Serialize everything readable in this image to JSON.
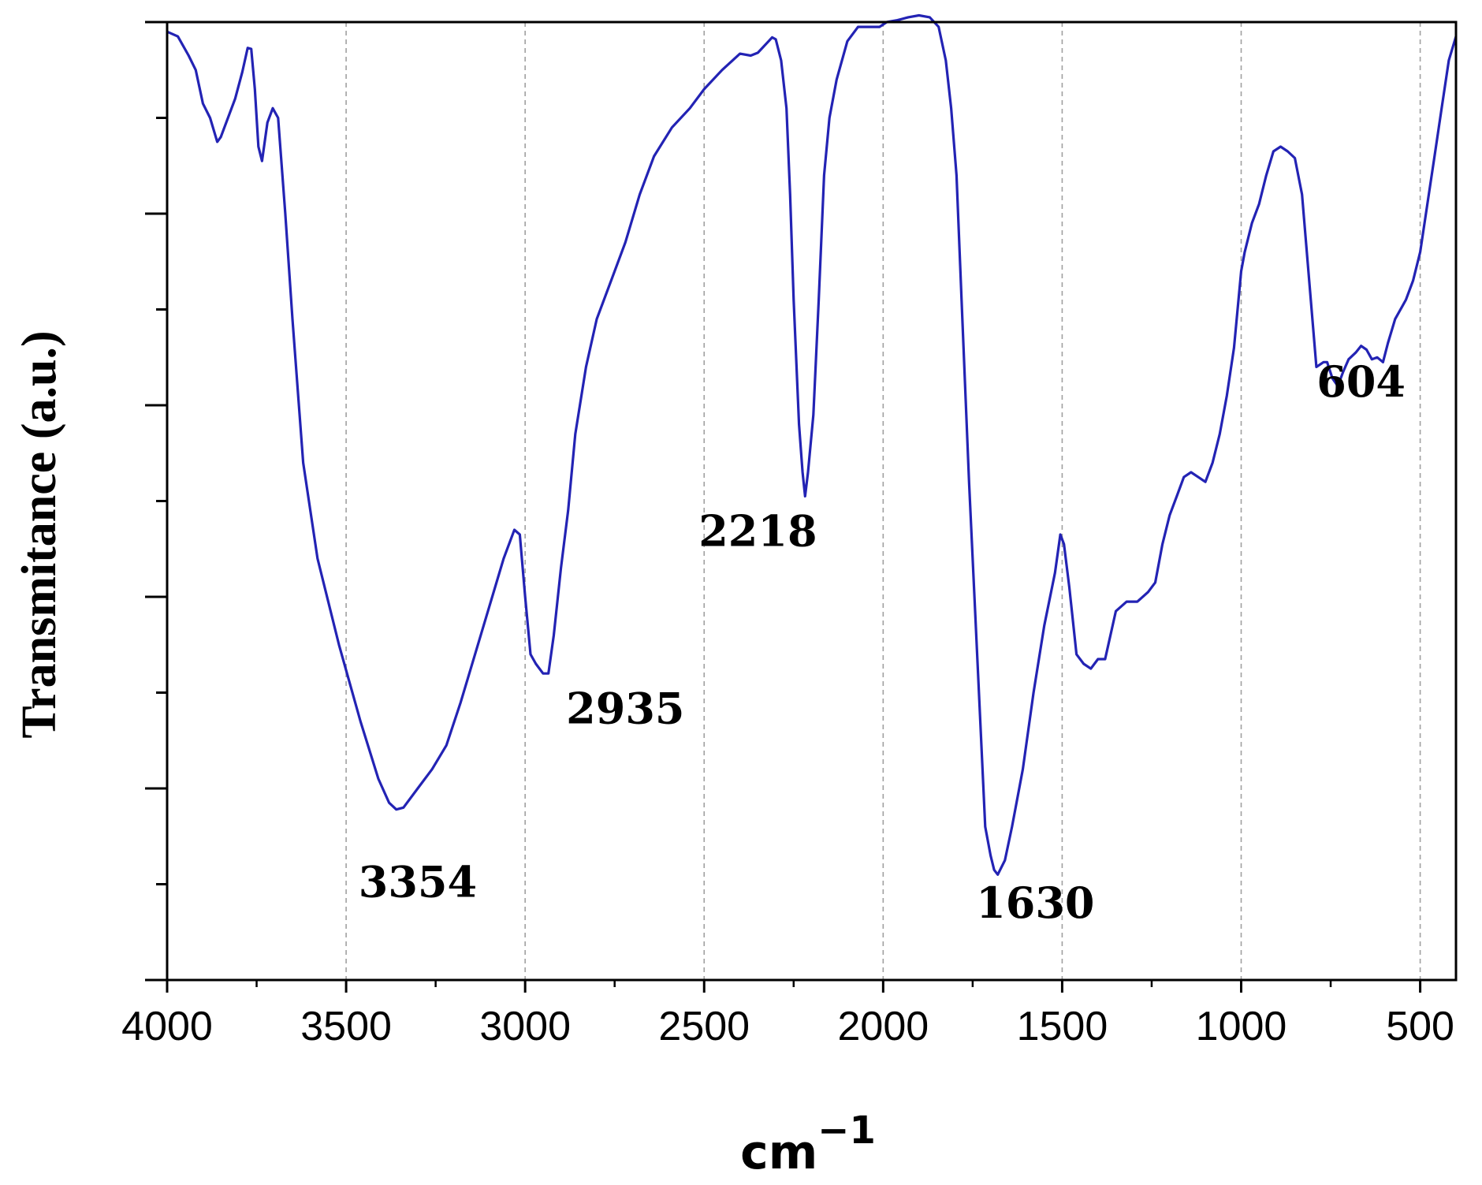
{
  "chart_data": {
    "type": "line",
    "title": "",
    "xlabel": "cm",
    "xlabel_superscript": "−1",
    "ylabel": "Transmitance (a.u.)",
    "xlim": [
      4000,
      400
    ],
    "x_reversed": true,
    "ylim": [
      0,
      1
    ],
    "y_tick_labels_shown": false,
    "y_tick_count": 11,
    "x_ticks": [
      4000,
      3500,
      3000,
      2500,
      2000,
      1500,
      1000,
      500
    ],
    "x_tick_labels": [
      "4000",
      "3500",
      "3000",
      "2500",
      "2000",
      "1500",
      "1000",
      "500"
    ],
    "x_minor_ticks": [
      3750,
      3250,
      2750,
      2250,
      1750,
      1250,
      750
    ],
    "grid": "vertical dashed at major x ticks",
    "legend": "none",
    "series": [
      {
        "color": "#2323b4",
        "points": [
          [
            4000,
            0.99
          ],
          [
            3970,
            0.985
          ],
          [
            3940,
            0.965
          ],
          [
            3920,
            0.95
          ],
          [
            3900,
            0.915
          ],
          [
            3880,
            0.9
          ],
          [
            3860,
            0.875
          ],
          [
            3850,
            0.88
          ],
          [
            3810,
            0.92
          ],
          [
            3790,
            0.948
          ],
          [
            3775,
            0.973
          ],
          [
            3765,
            0.972
          ],
          [
            3755,
            0.93
          ],
          [
            3745,
            0.87
          ],
          [
            3735,
            0.855
          ],
          [
            3720,
            0.895
          ],
          [
            3705,
            0.91
          ],
          [
            3690,
            0.9
          ],
          [
            3670,
            0.8
          ],
          [
            3650,
            0.69
          ],
          [
            3620,
            0.54
          ],
          [
            3580,
            0.44
          ],
          [
            3520,
            0.35
          ],
          [
            3460,
            0.27
          ],
          [
            3410,
            0.21
          ],
          [
            3380,
            0.185
          ],
          [
            3360,
            0.178
          ],
          [
            3340,
            0.18
          ],
          [
            3300,
            0.2
          ],
          [
            3260,
            0.22
          ],
          [
            3220,
            0.245
          ],
          [
            3180,
            0.29
          ],
          [
            3140,
            0.34
          ],
          [
            3100,
            0.39
          ],
          [
            3060,
            0.44
          ],
          [
            3030,
            0.47
          ],
          [
            3015,
            0.465
          ],
          [
            3000,
            0.4
          ],
          [
            2985,
            0.34
          ],
          [
            2970,
            0.33
          ],
          [
            2950,
            0.32
          ],
          [
            2935,
            0.32
          ],
          [
            2920,
            0.36
          ],
          [
            2900,
            0.43
          ],
          [
            2880,
            0.49
          ],
          [
            2860,
            0.57
          ],
          [
            2830,
            0.64
          ],
          [
            2800,
            0.69
          ],
          [
            2760,
            0.73
          ],
          [
            2720,
            0.77
          ],
          [
            2680,
            0.82
          ],
          [
            2640,
            0.86
          ],
          [
            2590,
            0.89
          ],
          [
            2540,
            0.91
          ],
          [
            2500,
            0.93
          ],
          [
            2450,
            0.95
          ],
          [
            2400,
            0.967
          ],
          [
            2370,
            0.965
          ],
          [
            2350,
            0.968
          ],
          [
            2320,
            0.98
          ],
          [
            2310,
            0.984
          ],
          [
            2300,
            0.982
          ],
          [
            2285,
            0.96
          ],
          [
            2270,
            0.91
          ],
          [
            2260,
            0.82
          ],
          [
            2250,
            0.71
          ],
          [
            2235,
            0.58
          ],
          [
            2225,
            0.53
          ],
          [
            2218,
            0.505
          ],
          [
            2210,
            0.53
          ],
          [
            2195,
            0.59
          ],
          [
            2180,
            0.71
          ],
          [
            2165,
            0.84
          ],
          [
            2150,
            0.9
          ],
          [
            2130,
            0.94
          ],
          [
            2100,
            0.98
          ],
          [
            2070,
            0.995
          ],
          [
            2040,
            0.995
          ],
          [
            2010,
            0.995
          ],
          [
            1990,
            1.0
          ],
          [
            1960,
            1.002
          ],
          [
            1930,
            1.005
          ],
          [
            1900,
            1.007
          ],
          [
            1870,
            1.005
          ],
          [
            1845,
            0.995
          ],
          [
            1825,
            0.96
          ],
          [
            1810,
            0.91
          ],
          [
            1795,
            0.84
          ],
          [
            1780,
            0.7
          ],
          [
            1760,
            0.52
          ],
          [
            1735,
            0.32
          ],
          [
            1715,
            0.16
          ],
          [
            1700,
            0.13
          ],
          [
            1690,
            0.115
          ],
          [
            1680,
            0.11
          ],
          [
            1660,
            0.125
          ],
          [
            1640,
            0.16
          ],
          [
            1610,
            0.22
          ],
          [
            1580,
            0.3
          ],
          [
            1550,
            0.37
          ],
          [
            1520,
            0.425
          ],
          [
            1505,
            0.465
          ],
          [
            1495,
            0.455
          ],
          [
            1480,
            0.41
          ],
          [
            1460,
            0.34
          ],
          [
            1440,
            0.33
          ],
          [
            1420,
            0.325
          ],
          [
            1400,
            0.335
          ],
          [
            1380,
            0.335
          ],
          [
            1350,
            0.385
          ],
          [
            1320,
            0.395
          ],
          [
            1290,
            0.395
          ],
          [
            1260,
            0.405
          ],
          [
            1240,
            0.415
          ],
          [
            1220,
            0.455
          ],
          [
            1200,
            0.485
          ],
          [
            1180,
            0.505
          ],
          [
            1160,
            0.525
          ],
          [
            1140,
            0.53
          ],
          [
            1120,
            0.525
          ],
          [
            1100,
            0.52
          ],
          [
            1080,
            0.54
          ],
          [
            1060,
            0.57
          ],
          [
            1040,
            0.61
          ],
          [
            1020,
            0.66
          ],
          [
            1000,
            0.74
          ],
          [
            990,
            0.76
          ],
          [
            970,
            0.79
          ],
          [
            950,
            0.81
          ],
          [
            930,
            0.84
          ],
          [
            910,
            0.865
          ],
          [
            890,
            0.87
          ],
          [
            870,
            0.865
          ],
          [
            850,
            0.858
          ],
          [
            830,
            0.82
          ],
          [
            810,
            0.73
          ],
          [
            790,
            0.64
          ],
          [
            770,
            0.645
          ],
          [
            760,
            0.645
          ],
          [
            745,
            0.628
          ],
          [
            730,
            0.62
          ],
          [
            715,
            0.635
          ],
          [
            700,
            0.648
          ],
          [
            680,
            0.655
          ],
          [
            665,
            0.662
          ],
          [
            650,
            0.658
          ],
          [
            635,
            0.648
          ],
          [
            620,
            0.65
          ],
          [
            604,
            0.645
          ],
          [
            590,
            0.665
          ],
          [
            570,
            0.69
          ],
          [
            540,
            0.71
          ],
          [
            520,
            0.73
          ],
          [
            500,
            0.76
          ],
          [
            480,
            0.81
          ],
          [
            460,
            0.86
          ],
          [
            440,
            0.91
          ],
          [
            420,
            0.96
          ],
          [
            400,
            0.985
          ]
        ]
      }
    ],
    "annotations": [
      {
        "text": "3354",
        "x": 3300,
        "y": 0.087
      },
      {
        "text": "2935",
        "x": 2720,
        "y": 0.268
      },
      {
        "text": "2218",
        "x": 2350,
        "y": 0.453
      },
      {
        "text": "1630",
        "x": 1575,
        "y": 0.065
      },
      {
        "text": "604",
        "x": 665,
        "y": 0.609
      }
    ]
  }
}
